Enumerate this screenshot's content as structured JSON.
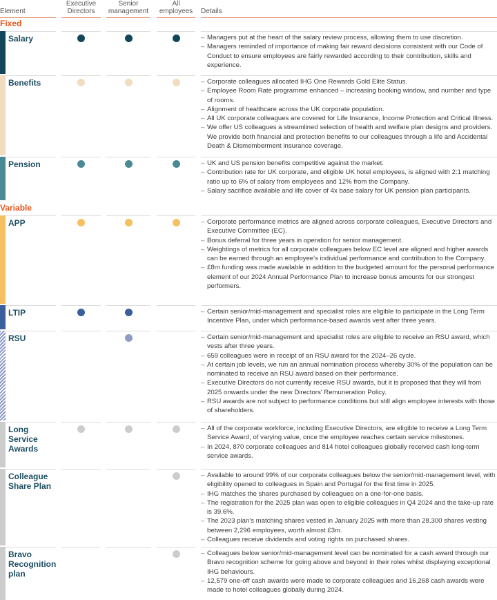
{
  "header": {
    "element": "Element",
    "exec": "Executive Directors",
    "senior": "Senior management",
    "all": "All employees",
    "details": "Details"
  },
  "sections": {
    "fixed": "Fixed",
    "variable": "Variable"
  },
  "rows": [
    {
      "name": "Salary",
      "color": "#12475a",
      "dots": [
        true,
        true,
        true
      ],
      "details": [
        "Managers put at the heart of the salary review process, allowing them to use discretion.",
        "Managers reminded of importance of making fair reward decisions consistent with our Code of Conduct to ensure employees are fairly rewarded according to their contribution, skills and experience."
      ]
    },
    {
      "name": "Benefits",
      "color": "#f2dcc0",
      "dots": [
        true,
        true,
        true
      ],
      "details": [
        "Corporate colleagues allocated IHG One Rewards Gold Elite Status.",
        "Employee Room Rate programme enhanced – increasing booking window, and number and type of rooms.",
        "Alignment of healthcare across the UK corporate population.",
        "All UK corporate colleagues are covered for Life Insurance, Income Protection and Critical Illness.",
        "We offer US colleagues a streamlined selection of health and welfare plan designs and providers. We provide both financial and protection benefits to our colleagues through a life and Accidental Death & Dismemberment insurance coverage."
      ]
    },
    {
      "name": "Pension",
      "color": "#4a8a94",
      "dots": [
        true,
        true,
        true
      ],
      "details": [
        "UK and US pension benefits competitive against the market.",
        "Contribution rate for UK corporate, and eligible UK hotel employees, is aligned with 2:1 matching ratio up to 6% of salary from employees and 12% from the Company.",
        "Salary sacrifice available and life cover of 4x base salary for UK pension plan participants."
      ]
    },
    {
      "name": "APP",
      "color": "#f5c060",
      "dots": [
        true,
        true,
        true
      ],
      "details": [
        "Corporate performance metrics are aligned across corporate colleagues, Executive Directors and Executive Committee (EC).",
        "Bonus deferral for three years in operation for senior management.",
        "Weightings of metrics for all corporate colleagues below EC level are aligned and higher awards can be earned through an employee's individual performance and contribution to the Company.",
        "£8m funding was made available in addition to the budgeted amount for the personal performance element of our 2024 Annual Performance Plan to increase bonus amounts for our strongest performers."
      ]
    },
    {
      "name": "LTIP",
      "color": "#3b5e9c",
      "dots": [
        true,
        true,
        false
      ],
      "details": [
        "Certain senior/mid-management and specialist roles are eligible to participate in the Long Term Incentive Plan, under which performance-based awards vest after three years."
      ]
    },
    {
      "name": "RSU",
      "color": "#8f9cc8",
      "hatched": true,
      "dots": [
        false,
        true,
        false
      ],
      "details": [
        "Certain senior/mid-management and specialist roles are eligible to receive an RSU award, which vests after three years.",
        "659 colleagues were in receipt of an RSU award for the 2024–26 cycle.",
        "At certain job levels, we run an annual nomination process whereby 30% of the population can be nominated to receive an RSU award based on their performance.",
        "Executive Directors do not currently receive RSU awards, but it is proposed that they will from 2025 onwards under the new Directors' Remuneration Policy.",
        "RSU awards are not subject to performance conditions but still align employee interests with those of shareholders."
      ]
    },
    {
      "name": "Long Service Awards",
      "color": "#cccccc",
      "dots": [
        true,
        true,
        true
      ],
      "details": [
        "All of the corporate workforce, including Executive Directors, are eligible to receive a Long Term Service Award, of varying value, once the employee reaches certain service milestones.",
        "In 2024, 870 corporate colleagues and 814 hotel colleagues globally received cash long-term service awards."
      ]
    },
    {
      "name": "Colleague Share Plan",
      "color": "#cccccc",
      "dots": [
        false,
        false,
        true
      ],
      "details": [
        "Available to around 99% of our corporate colleagues below the senior/mid-management level, with eligibility opened to colleagues in Spain and Portugal for the first time in 2025.",
        "IHG matches the shares purchased by colleagues on a one-for-one basis.",
        "The registration for the 2025 plan was open to eligible colleagues in Q4 2024 and the take-up rate is 39.6%.",
        "The 2023 plan's matching shares vested in January 2025 with more than 28,300 shares vesting between 2,296 employees, worth almost £3m.",
        "Colleagues receive dividends and voting rights on purchased shares."
      ]
    },
    {
      "name": "Bravo Recognition plan",
      "color": "#cccccc",
      "dots": [
        false,
        false,
        true
      ],
      "details": [
        "Colleagues below senior/mid-management level can be nominated for a cash award through our Bravo recognition scheme for going above and beyond in their roles whilst displaying exceptional IHG behaviours.",
        "12,579 one-off cash awards were made to corporate colleagues and 16,268 cash awards were made to hotel colleagues globally during 2024."
      ]
    }
  ]
}
